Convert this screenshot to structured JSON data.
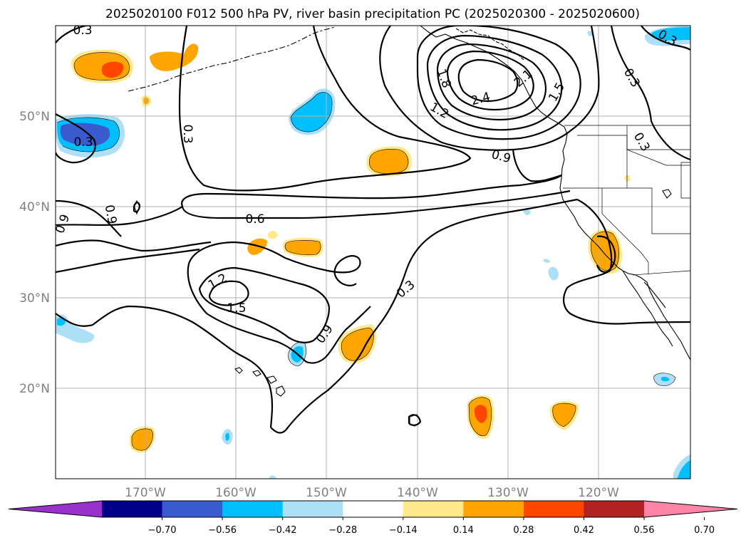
{
  "title": "2025020100 F012 500 hPa PV, river basin precipitation PC (2025020300 - 2025020600)",
  "lat_labels": [
    "50°N",
    "40°N",
    "30°N",
    "20°N"
  ],
  "lon_labels": [
    "170°W",
    "160°W",
    "150°W",
    "140°W",
    "130°W",
    "120°W"
  ],
  "colorbar": {
    "tick_labels": [
      "−0.70",
      "−0.56",
      "−0.42",
      "−0.28",
      "−0.14",
      "0.14",
      "0.28",
      "0.42",
      "0.56",
      "0.70"
    ],
    "colors": [
      "#9932CC",
      "#00008B",
      "#3A5BCF",
      "#00BFFF",
      "#ADE0F7",
      "#FFFFFF",
      "#FFE98A",
      "#FFA500",
      "#FF4500",
      "#B22222",
      "#FF85A8"
    ]
  },
  "contour_labels": {
    "l03_topleft": "0.3",
    "l03_left": "0.3",
    "l03_nw": "0.3",
    "l09_left1": "0.9",
    "l09_left2": "0.9",
    "l06": "0.6",
    "l12_center": "1.2",
    "l15_center": "1.5",
    "l09_center": "0.9",
    "l03_center": "0.3",
    "l09_north": "0.9",
    "l12_north": "1.2",
    "l18": "1.8",
    "l24": "2.4",
    "l21": "2.1",
    "l15_north": "1.5",
    "l03_ne": "0.3",
    "l03_ne2": "0.3",
    "l03_coast": "0.3"
  }
}
